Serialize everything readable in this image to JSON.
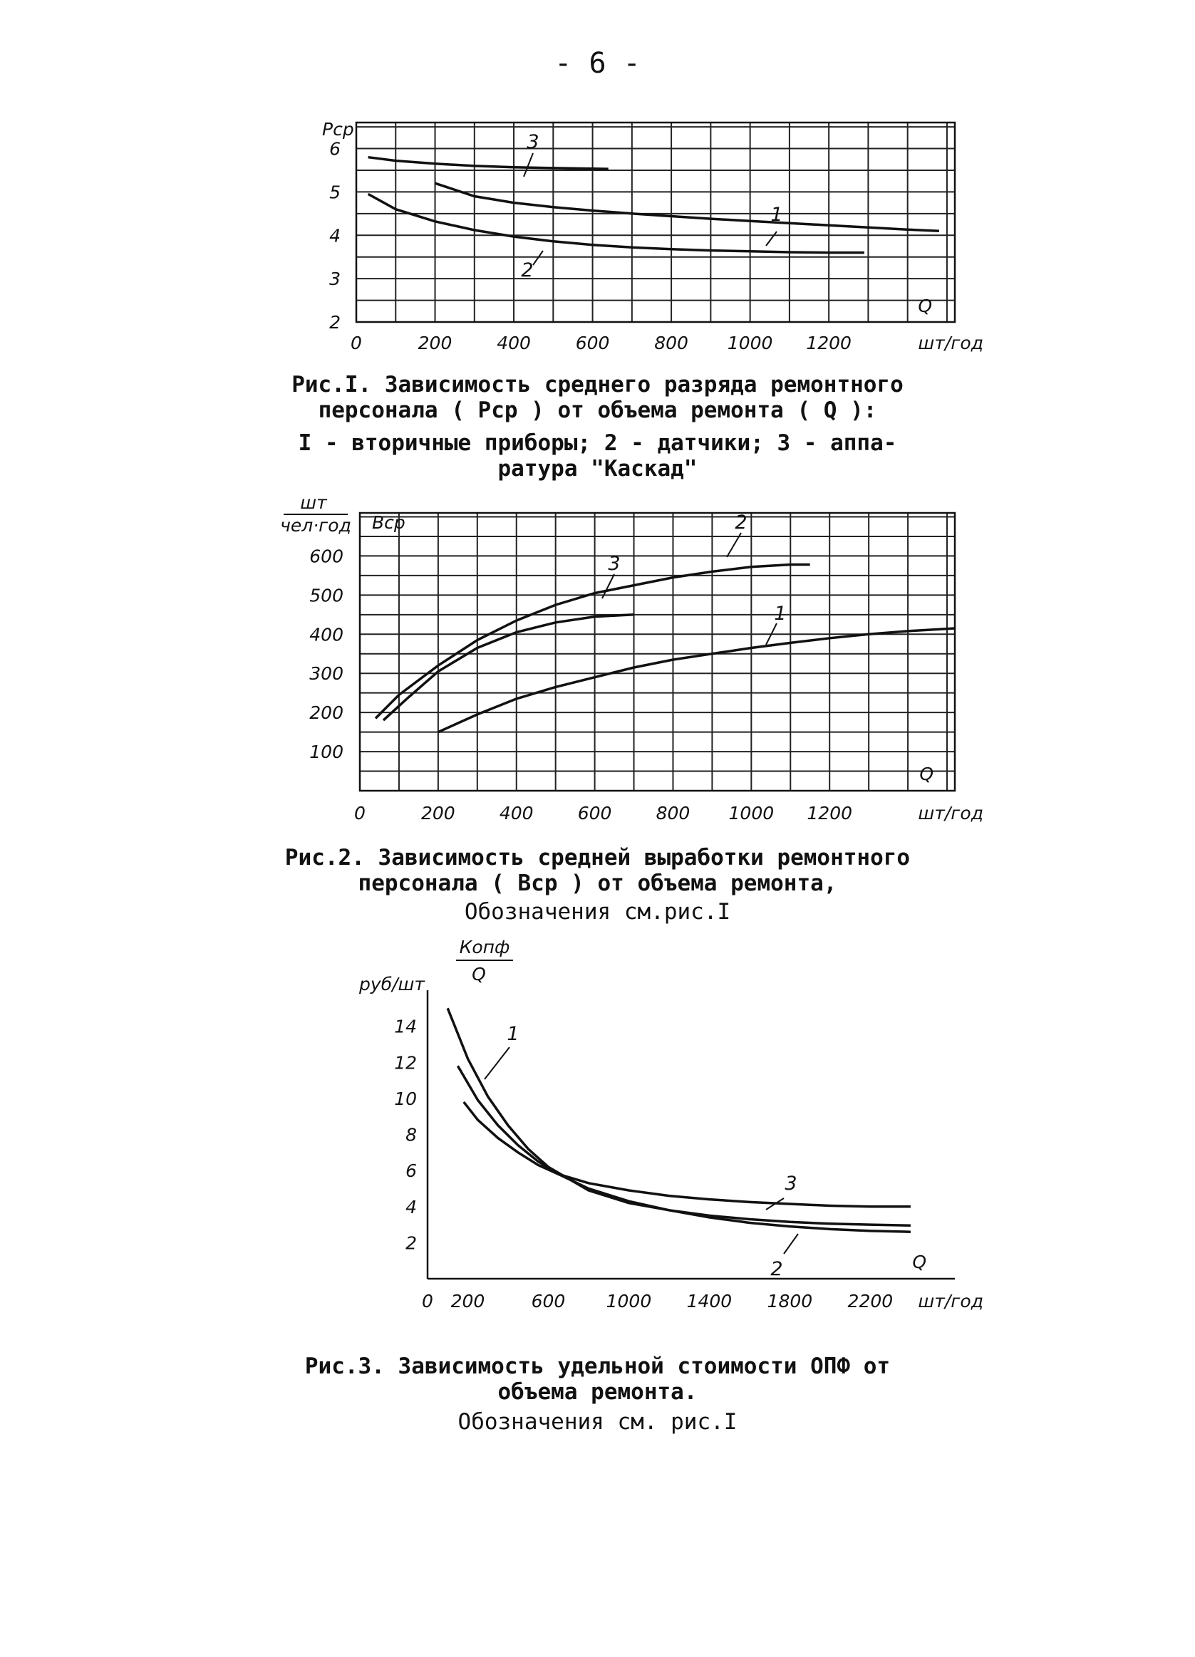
{
  "page_number": "- 6 -",
  "colors": {
    "ink": "#111111",
    "background": "#ffffff"
  },
  "figures": [
    {
      "caption_lines": [
        "Рис.I. Зависимость среднего разряда ремонтного",
        "персонала ( Pср ) от объема ремонта ( Q ):"
      ],
      "legend_lines": [
        "I - вторичные приборы; 2 - датчики; 3 - аппа-",
        "ратура \"Каскад\""
      ]
    },
    {
      "caption_lines": [
        "Рис.2. Зависимость средней выработки ремонтного",
        "персонала ( Bср ) от объема ремонта,"
      ],
      "legend_lines": [
        "Обозначения см.рис.I"
      ]
    },
    {
      "caption_lines": [
        "Рис.3. Зависимость удельной стоимости ОПФ от",
        "объема ремонта."
      ],
      "legend_lines": [
        "Обозначения см. рис.I"
      ]
    }
  ],
  "chart_data": [
    {
      "type": "line",
      "ylabel": "Pср",
      "xlabel": "Q",
      "x_unit": "шт/год",
      "xlim": [
        0,
        1520
      ],
      "ylim": [
        2,
        6.6
      ],
      "x_ticks": [
        0,
        200,
        400,
        600,
        800,
        1000,
        1200
      ],
      "y_ticks": [
        2,
        3,
        4,
        5,
        6
      ],
      "grid": true,
      "series": [
        {
          "name": "1",
          "x": [
            200,
            300,
            400,
            500,
            600,
            700,
            800,
            900,
            1000,
            1100,
            1200,
            1300,
            1400,
            1480
          ],
          "y": [
            5.2,
            4.9,
            4.75,
            4.65,
            4.57,
            4.5,
            4.44,
            4.38,
            4.33,
            4.28,
            4.23,
            4.18,
            4.13,
            4.1
          ]
        },
        {
          "name": "2",
          "x": [
            30,
            100,
            200,
            300,
            400,
            500,
            600,
            700,
            800,
            900,
            1000,
            1100,
            1200,
            1290
          ],
          "y": [
            4.95,
            4.6,
            4.32,
            4.12,
            3.97,
            3.86,
            3.78,
            3.72,
            3.68,
            3.65,
            3.63,
            3.61,
            3.6,
            3.6
          ]
        },
        {
          "name": "3",
          "x": [
            30,
            100,
            200,
            300,
            400,
            500,
            640
          ],
          "y": [
            5.8,
            5.72,
            5.65,
            5.6,
            5.57,
            5.55,
            5.53
          ]
        }
      ],
      "series_labels": [
        "1",
        "2",
        "3"
      ]
    },
    {
      "type": "line",
      "ylabel": "Bср",
      "y_unit_numerator": "шт",
      "y_unit_denominator": "чел·год",
      "xlabel": "Q",
      "x_unit": "шт/год",
      "xlim": [
        0,
        1520
      ],
      "ylim": [
        0,
        710
      ],
      "x_ticks": [
        0,
        200,
        400,
        600,
        800,
        1000,
        1200
      ],
      "y_ticks": [
        100,
        200,
        300,
        400,
        500,
        600
      ],
      "grid": true,
      "series": [
        {
          "name": "1",
          "x": [
            200,
            300,
            400,
            500,
            600,
            700,
            800,
            900,
            1000,
            1100,
            1200,
            1300,
            1400,
            1520
          ],
          "y": [
            150,
            195,
            235,
            265,
            290,
            315,
            335,
            350,
            365,
            378,
            390,
            400,
            408,
            415
          ]
        },
        {
          "name": "2",
          "x": [
            40,
            100,
            200,
            300,
            400,
            500,
            600,
            700,
            800,
            900,
            1000,
            1100,
            1150
          ],
          "y": [
            185,
            245,
            320,
            385,
            435,
            475,
            505,
            525,
            545,
            560,
            572,
            578,
            578
          ]
        },
        {
          "name": "3",
          "x": [
            60,
            120,
            200,
            300,
            400,
            500,
            600,
            700
          ],
          "y": [
            180,
            235,
            305,
            365,
            405,
            430,
            445,
            450
          ]
        }
      ],
      "series_labels": [
        "1",
        "2",
        "3"
      ]
    },
    {
      "type": "line",
      "ylabel_numerator": "Копф",
      "ylabel_denominator": "Q",
      "y_unit": "руб/шт",
      "xlabel": "Q",
      "x_unit": "шт/год",
      "xlim": [
        0,
        2620
      ],
      "ylim": [
        0,
        16
      ],
      "x_ticks": [
        0,
        200,
        600,
        1000,
        1400,
        1800,
        2200
      ],
      "y_ticks": [
        2,
        4,
        6,
        8,
        10,
        12,
        14
      ],
      "grid": false,
      "series": [
        {
          "name": "1",
          "x": [
            100,
            200,
            300,
            400,
            500,
            600,
            800,
            1000,
            1200,
            1400,
            1600,
            1800,
            2000,
            2200,
            2400
          ],
          "y": [
            15.0,
            12.2,
            10.1,
            8.5,
            7.2,
            6.2,
            4.9,
            4.2,
            3.8,
            3.5,
            3.3,
            3.15,
            3.05,
            3.0,
            2.95
          ]
        },
        {
          "name": "2",
          "x": [
            150,
            250,
            350,
            450,
            550,
            650,
            800,
            1000,
            1200,
            1400,
            1600,
            1800,
            2000,
            2200,
            2400
          ],
          "y": [
            11.8,
            9.9,
            8.5,
            7.4,
            6.5,
            5.8,
            5.0,
            4.3,
            3.8,
            3.4,
            3.1,
            2.9,
            2.75,
            2.65,
            2.6
          ]
        },
        {
          "name": "3",
          "x": [
            180,
            250,
            350,
            450,
            550,
            650,
            800,
            1000,
            1200,
            1400,
            1600,
            1800,
            2000,
            2200,
            2400
          ],
          "y": [
            9.8,
            8.8,
            7.8,
            7.0,
            6.3,
            5.8,
            5.3,
            4.9,
            4.6,
            4.4,
            4.25,
            4.15,
            4.05,
            4.0,
            4.0
          ]
        }
      ],
      "series_labels": [
        "1",
        "2",
        "3"
      ]
    }
  ]
}
